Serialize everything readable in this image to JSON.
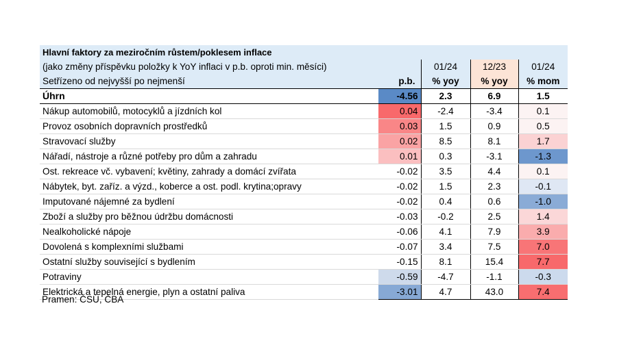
{
  "title": "Hlavní faktory za meziročním růstem/poklesem inflace",
  "subtitle": "(jako změny příspěvku položky k YoY inflaci v p.b. oproti min. měsíci)",
  "sort_note": "Setřízeno od nejvyšší po nejmenší",
  "columns": {
    "pb": "p.b.",
    "c1_period": "01/24",
    "c1_unit": "% yoy",
    "c2_period": "12/23",
    "c2_unit": "% yoy",
    "c3_period": "01/24",
    "c3_unit": "% mom"
  },
  "colors": {
    "header_bg": "#ddebf7",
    "pink": "#fbe4e8",
    "green": "#5cc88a",
    "red_scale": "#f8696b",
    "blue_scale": "#5a8ac6"
  },
  "total": {
    "name": "Úhrn",
    "pb": "-4.56",
    "v1": "2.3",
    "v2": "6.9",
    "v3": "1.5"
  },
  "rows": [
    {
      "name": "Nákup automobilů, motocyklů a jízdních kol",
      "pb": "0.04",
      "v1": "-2.4",
      "v2": "-3.4",
      "v3": "0.1"
    },
    {
      "name": "Provoz osobních dopravních prostředků",
      "pb": "0.03",
      "v1": "1.5",
      "v2": "0.9",
      "v3": "0.5"
    },
    {
      "name": "Stravovací služby",
      "pb": "0.02",
      "v1": "8.5",
      "v2": "8.1",
      "v3": "1.7"
    },
    {
      "name": "Nářadí, nástroje a různé potřeby pro dům a zahradu",
      "pb": "0.01",
      "v1": "0.3",
      "v2": "-3.1",
      "v3": "-1.3"
    },
    {
      "name": "Ost. rekreace vč. vybavení; květiny, zahrady a domácí zvířata",
      "pb": "-0.02",
      "v1": "3.5",
      "v2": "4.4",
      "v3": "0.1"
    },
    {
      "name": "Nábytek, byt. zaříz. a výzd., koberce a ost. podl. krytina;opravy",
      "pb": "-0.02",
      "v1": "1.5",
      "v2": "2.3",
      "v3": "-0.1"
    },
    {
      "name": "Imputované nájemné za bydlení",
      "pb": "-0.02",
      "v1": "0.4",
      "v2": "0.6",
      "v3": "-1.0"
    },
    {
      "name": "Zboží a služby pro běžnou údržbu domácnosti",
      "pb": "-0.03",
      "v1": "-0.2",
      "v2": "2.5",
      "v3": "1.4"
    },
    {
      "name": "Nealkoholické nápoje",
      "pb": "-0.06",
      "v1": "4.1",
      "v2": "7.9",
      "v3": "3.9"
    },
    {
      "name": "Dovolená s komplexními službami",
      "pb": "-0.07",
      "v1": "3.4",
      "v2": "7.5",
      "v3": "7.0"
    },
    {
      "name": "Ostatní služby související s bydlením",
      "pb": "-0.15",
      "v1": "8.1",
      "v2": "15.4",
      "v3": "7.7"
    },
    {
      "name": "Potraviny",
      "pb": "-0.59",
      "v1": "-4.7",
      "v2": "-1.1",
      "v3": "-0.3"
    },
    {
      "name": "Elektrická a tepelná energie, plyn a ostatní paliva",
      "pb": "-3.01",
      "v1": "4.7",
      "v2": "43.0",
      "v3": "7.4"
    }
  ],
  "source": "Pramen: ČSÚ, ČBA"
}
